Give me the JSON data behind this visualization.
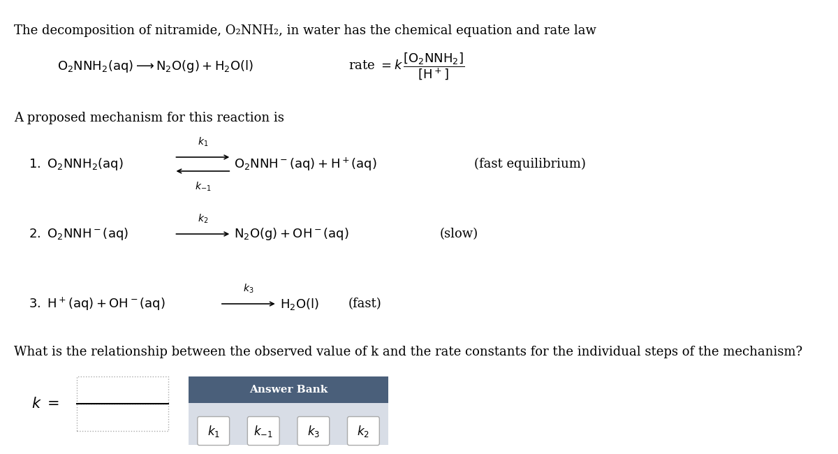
{
  "bg_color": "#f5f5f5",
  "title_text": "The decomposition of nitramide, O₂NNH₂, in water has the chemical equation and rate law",
  "main_equation": "O₂NNH₂(aq) → N₂O(g) + H₂O(l)",
  "rate_law_prefix": "rate = k",
  "rate_numerator": "[O₂NNH₂]",
  "rate_denominator": "[H⁺]",
  "proposed_text": "A proposed mechanism for this reaction is",
  "step1_left": "1. O₂NNH₂(aq)",
  "step1_right": "O₂NNH⁻(aq) + H⁺(aq)",
  "step1_comment": "(fast equilibrium)",
  "step1_k_top": "k₁",
  "step1_k_bottom": "k₋₁",
  "step2_left": "2. O₂NNH⁻(aq)",
  "step2_right": "N₂O(g) + OH⁻(aq)",
  "step2_comment": "(slow)",
  "step2_k": "k₂",
  "step3_left": "3. H⁺(aq) + OH⁻(aq)",
  "step3_right": "H₂O(l)",
  "step3_comment": "(fast)",
  "step3_k": "k₃",
  "question_text": "What is the relationship between the observed value of k and the rate constants for the individual steps of the mechanism?",
  "k_label": "k =",
  "answer_bank_title": "Answer Bank",
  "answer_items": [
    "k₁",
    "k₋₁",
    "k₃",
    "k₂"
  ],
  "answer_bank_header_color": "#4a5f7a",
  "answer_bank_body_color": "#d8dde6",
  "answer_bank_text_color": "#ffffff",
  "box_border_color": "#888888",
  "item_box_color": "#e8eaed"
}
